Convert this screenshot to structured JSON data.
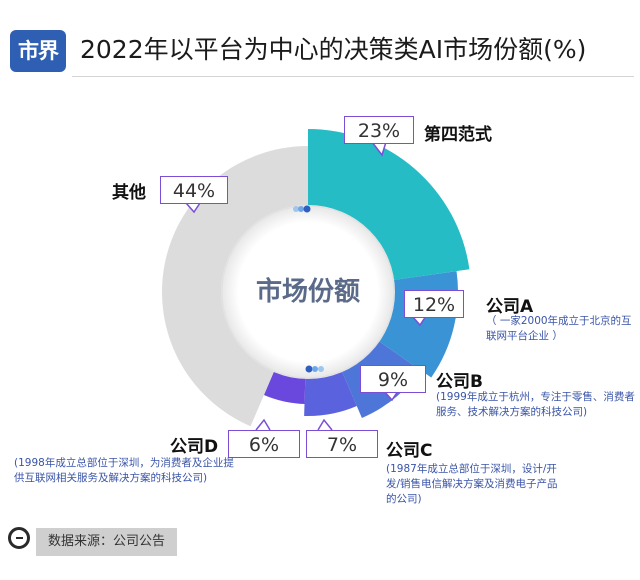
{
  "header": {
    "logo": "市界",
    "title": "2022年以平台为中心的决策类AI市场份额(%)"
  },
  "center_label": "市场份额",
  "footer": {
    "source": "数据来源：公司公告"
  },
  "chart_data": {
    "type": "pie",
    "title": "2022年以平台为中心的决策类AI市场份额(%)",
    "unit": "%",
    "categories": [
      "第四范式",
      "公司A",
      "公司B",
      "公司C",
      "公司D",
      "其他"
    ],
    "values": [
      23,
      12,
      9,
      7,
      6,
      44
    ],
    "value_labels": [
      "23%",
      "12%",
      "9%",
      "7%",
      "6%",
      "44%"
    ],
    "notes": {
      "company_a": "（ 一家2000年成立于北京的互联网平台企业 ）",
      "company_b": "(1999年成立于杭州，专注于零售、消费者服务、技术解决方案的科技公司)",
      "company_c": "(1987年成立总部位于深圳，设计/开发/销售电信解决方案及消费电子产品的公司)",
      "company_d": "(1998年成立总部位于深圳，为消费者及企业提供互联网相关服务及解决方案的科技公司)"
    },
    "colors": [
      "#25bcc6",
      "#3a93d4",
      "#4d76d8",
      "#5a63dd",
      "#6a48dd",
      "#dcdcdc"
    ],
    "donut": true,
    "start": "12 o'clock, clockwise"
  }
}
